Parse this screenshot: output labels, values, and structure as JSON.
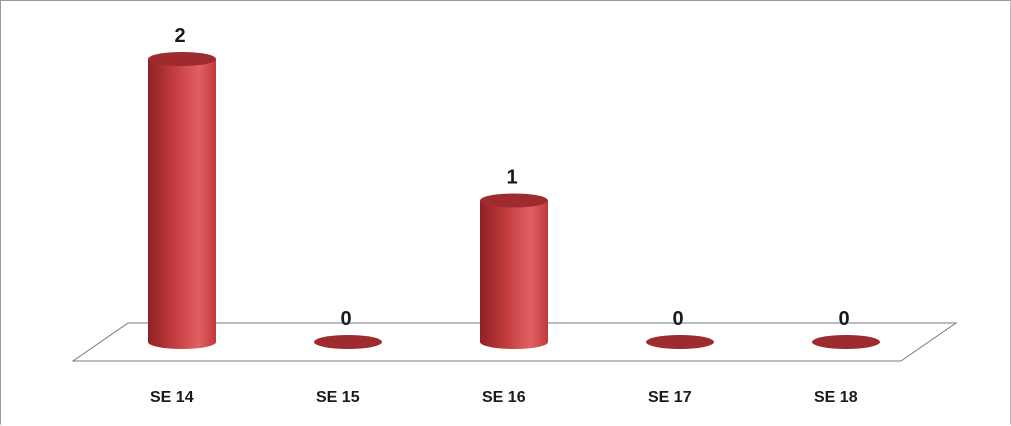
{
  "chart_data": {
    "type": "bar",
    "style": "3d-cylinder",
    "title": "",
    "xlabel": "",
    "ylabel": "",
    "categories": [
      "SE 14",
      "SE 15",
      "SE 16",
      "SE 17",
      "SE 18"
    ],
    "values": [
      2,
      0,
      1,
      0,
      0
    ],
    "data_labels": [
      "2",
      "0",
      "1",
      "0",
      "0"
    ],
    "ylim": [
      0,
      2
    ],
    "grid": false,
    "legend": "none",
    "colors": {
      "bar_body": "#c0393b",
      "bar_highlight": "#e26062",
      "bar_shadow": "#8e2224",
      "bar_top": "#9e2b2d",
      "floor_stroke": "#7a7a7a"
    }
  }
}
